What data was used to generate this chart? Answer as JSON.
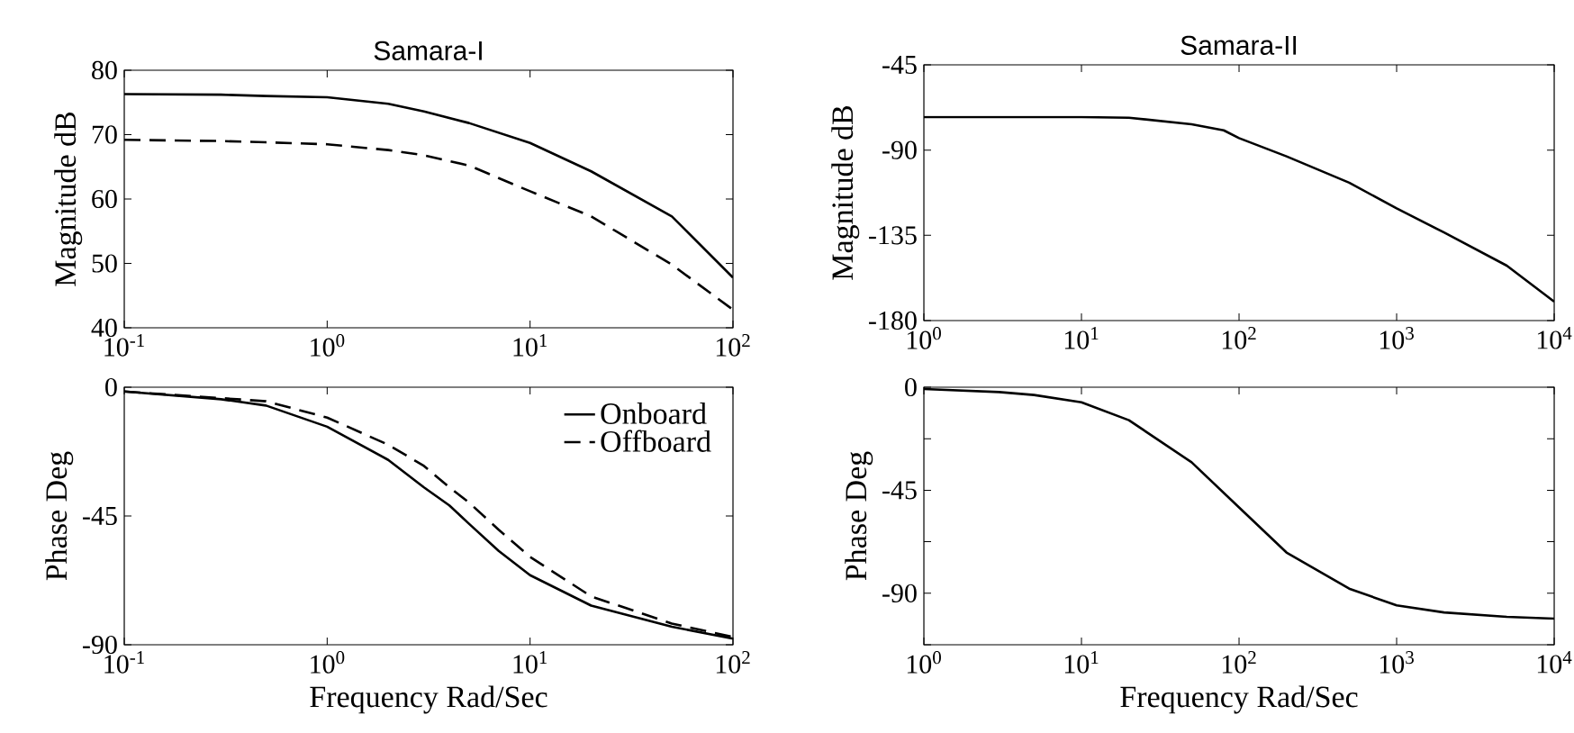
{
  "chart_data": [
    {
      "type": "line",
      "title": "Samara-I",
      "ylabel": "Magnitude dB",
      "log": "x",
      "xlim": [
        0.1,
        100
      ],
      "ylim": [
        40,
        80
      ],
      "xticks": [
        {
          "value": 0.1,
          "label": "10$^{-1}$"
        },
        {
          "value": 1,
          "label": "10$^{0}$"
        },
        {
          "value": 10,
          "label": "10$^{1}$"
        },
        {
          "value": 100,
          "label": "10$^{2}$"
        }
      ],
      "yticks": [
        40,
        50,
        60,
        70,
        80
      ],
      "series": [
        {
          "color": "#000000",
          "line_style": "solid",
          "x": [
            0.1,
            0.3,
            0.5,
            1,
            2,
            3,
            5,
            10,
            20,
            50,
            100
          ],
          "values": [
            76.3,
            76.2,
            76.0,
            75.8,
            74.8,
            73.6,
            71.8,
            68.7,
            64.3,
            57.3,
            47.8
          ]
        },
        {
          "color": "#000000",
          "line_style": "dashed",
          "x": [
            0.1,
            0.3,
            0.5,
            1,
            2,
            3,
            5,
            10,
            20,
            50,
            100
          ],
          "values": [
            69.2,
            69.0,
            68.8,
            68.5,
            67.6,
            66.8,
            65.2,
            61.2,
            57.3,
            49.8,
            42.8
          ]
        }
      ]
    },
    {
      "type": "line",
      "xlabel": "Frequency Rad/Sec",
      "ylabel": "Phase Deg",
      "log": "x",
      "legend": "top right",
      "xlim": [
        0.1,
        100
      ],
      "ylim": [
        -90,
        0
      ],
      "xticks": [
        {
          "value": 0.1,
          "label": "10$^{-1}$"
        },
        {
          "value": 1,
          "label": "10$^{0}$"
        },
        {
          "value": 10,
          "label": "10$^{1}$"
        },
        {
          "value": 100,
          "label": "10$^{2}$"
        }
      ],
      "yticks": [
        -90,
        -45,
        0
      ],
      "series": [
        {
          "name": "Onboard",
          "color": "#000000",
          "line_style": "solid",
          "x": [
            0.1,
            0.3,
            0.5,
            1,
            2,
            3,
            4,
            5,
            7,
            10,
            20,
            50,
            100
          ],
          "values": [
            -1.5,
            -4.2,
            -6.4,
            -13.8,
            -25.4,
            -35,
            -41.3,
            -47.7,
            -57.2,
            -65.7,
            -76.3,
            -83.7,
            -87.9
          ]
        },
        {
          "name": "Offboard",
          "color": "#000000",
          "line_style": "dashed",
          "x": [
            0.1,
            0.3,
            0.5,
            1,
            2,
            3,
            4,
            5,
            7,
            10,
            20,
            50,
            100
          ],
          "values": [
            -1.5,
            -3.8,
            -4.9,
            -10.6,
            -20.1,
            -27.5,
            -35,
            -40.3,
            -49.8,
            -59.3,
            -73.1,
            -82.6,
            -87.3
          ]
        }
      ]
    },
    {
      "type": "line",
      "title": "Samara-II",
      "ylabel": "Magnitude dB",
      "log": "x",
      "xlim": [
        1,
        10000
      ],
      "ylim": [
        -180,
        -45
      ],
      "xticks": [
        {
          "value": 1,
          "label": "10$^{0}$"
        },
        {
          "value": 10,
          "label": "10$^{1}$"
        },
        {
          "value": 100,
          "label": "10$^{2}$"
        },
        {
          "value": 1000,
          "label": "10$^{3}$"
        },
        {
          "value": 10000,
          "label": "10$^{4}$"
        }
      ],
      "yticks": [
        -180,
        -135,
        -90,
        -45
      ],
      "series": [
        {
          "color": "#000000",
          "line_style": "solid",
          "x": [
            1,
            10,
            20,
            50,
            80,
            100,
            200,
            500,
            1000,
            2000,
            5000,
            10000
          ],
          "values": [
            -72.6,
            -72.6,
            -72.9,
            -76.4,
            -79.6,
            -83.7,
            -93.3,
            -107.2,
            -120.8,
            -133.5,
            -151,
            -170
          ]
        }
      ]
    },
    {
      "type": "line",
      "xlabel": "Frequency Rad/Sec",
      "ylabel": "Phase Deg",
      "log": "x",
      "xlim": [
        1,
        10000
      ],
      "ylim": [
        -112.5,
        0
      ],
      "xticks": [
        {
          "value": 1,
          "label": "10$^{0}$"
        },
        {
          "value": 10,
          "label": "10$^{1}$"
        },
        {
          "value": 100,
          "label": "10$^{2}$"
        },
        {
          "value": 1000,
          "label": "10$^{3}$"
        },
        {
          "value": 10000,
          "label": "10$^{4}$"
        }
      ],
      "yticks": [
        {
          "value": -112.5,
          "label": null
        },
        -90,
        {
          "value": -67.5,
          "label": null
        },
        -45,
        {
          "value": -22.5,
          "label": null
        },
        0
      ],
      "series": [
        {
          "color": "#000000",
          "line_style": "solid",
          "x": [
            1,
            3,
            5,
            10,
            20,
            50,
            100,
            200,
            500,
            1000,
            2000,
            5000,
            10000
          ],
          "values": [
            -0.8,
            -2.1,
            -3.4,
            -6.6,
            -14.4,
            -32.8,
            -52.5,
            -72.2,
            -88,
            -95.3,
            -98.4,
            -100.3,
            -101.1
          ]
        }
      ]
    }
  ]
}
